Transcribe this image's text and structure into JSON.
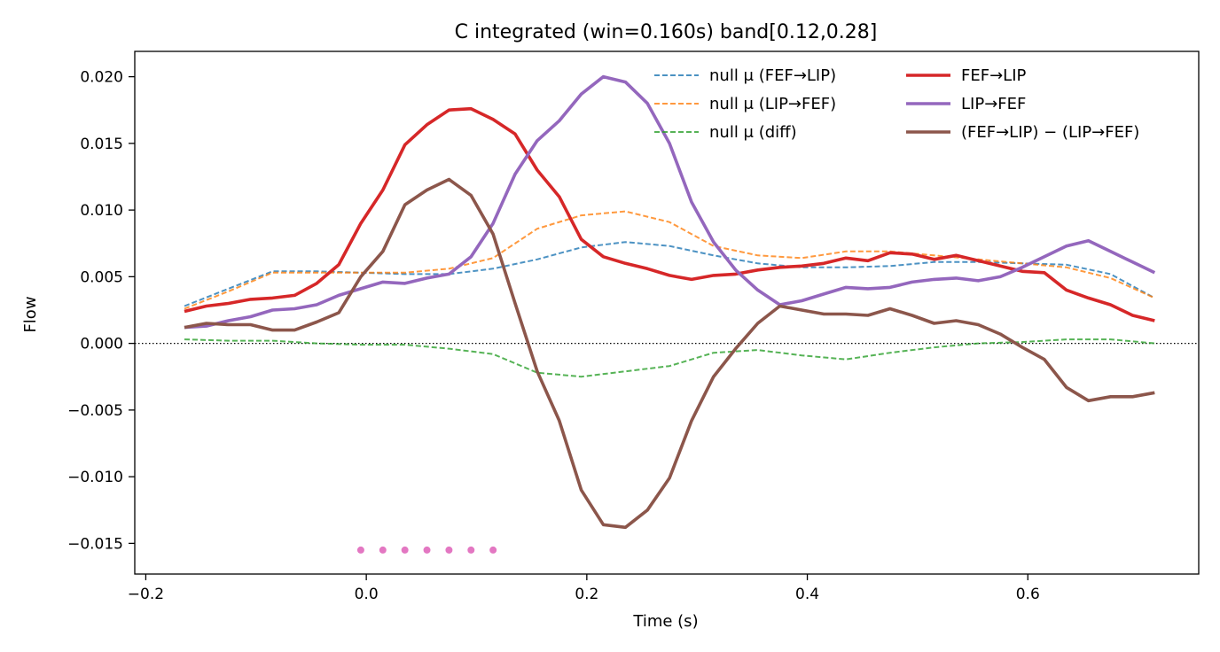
{
  "chart_data": {
    "type": "line",
    "title": "C integrated (win=0.160s)   band[0.12,0.28]",
    "xlabel": "Time (s)",
    "ylabel": "Flow",
    "xlim": [
      -0.21,
      0.755
    ],
    "ylim": [
      -0.0173,
      0.0219
    ],
    "xticks": [
      -0.2,
      0.0,
      0.2,
      0.4,
      0.6
    ],
    "xtick_labels": [
      "−0.2",
      "0.0",
      "0.2",
      "0.4",
      "0.6"
    ],
    "yticks": [
      -0.015,
      -0.01,
      -0.005,
      0.0,
      0.005,
      0.01,
      0.015,
      0.02
    ],
    "ytick_labels": [
      "−0.015",
      "−0.010",
      "−0.005",
      "0.000",
      "0.005",
      "0.010",
      "0.015",
      "0.020"
    ],
    "legend_location": "top-right",
    "grid": false,
    "zero_line": true,
    "series": [
      {
        "name": "null μ (FEF→LIP)",
        "color": "#1f77b4",
        "style": "dashed",
        "x": [
          -0.165,
          -0.125,
          -0.085,
          -0.045,
          -0.005,
          0.035,
          0.075,
          0.115,
          0.155,
          0.195,
          0.235,
          0.275,
          0.315,
          0.355,
          0.395,
          0.435,
          0.475,
          0.515,
          0.555,
          0.595,
          0.635,
          0.675,
          0.715
        ],
        "y": [
          0.0028,
          0.0041,
          0.0054,
          0.0054,
          0.0053,
          0.0052,
          0.0052,
          0.0056,
          0.0063,
          0.0072,
          0.0076,
          0.0073,
          0.0066,
          0.006,
          0.0057,
          0.0057,
          0.0058,
          0.0061,
          0.0061,
          0.006,
          0.0059,
          0.0052,
          0.0034
        ]
      },
      {
        "name": "null μ (LIP→FEF)",
        "color": "#ff7f0e",
        "style": "dashed",
        "x": [
          -0.165,
          -0.125,
          -0.085,
          -0.045,
          -0.005,
          0.035,
          0.075,
          0.115,
          0.155,
          0.195,
          0.235,
          0.275,
          0.315,
          0.355,
          0.395,
          0.435,
          0.475,
          0.515,
          0.555,
          0.595,
          0.635,
          0.675,
          0.715
        ],
        "y": [
          0.0026,
          0.0039,
          0.0053,
          0.0053,
          0.0053,
          0.0053,
          0.0056,
          0.0064,
          0.0086,
          0.0096,
          0.0099,
          0.0091,
          0.0073,
          0.0066,
          0.0064,
          0.0069,
          0.0069,
          0.0066,
          0.0063,
          0.006,
          0.0057,
          0.0049,
          0.0034
        ]
      },
      {
        "name": "null μ (diff)",
        "color": "#2ca02c",
        "style": "dashed",
        "x": [
          -0.165,
          -0.125,
          -0.085,
          -0.045,
          -0.005,
          0.035,
          0.075,
          0.115,
          0.155,
          0.195,
          0.235,
          0.275,
          0.315,
          0.355,
          0.395,
          0.435,
          0.475,
          0.515,
          0.555,
          0.595,
          0.635,
          0.675,
          0.715
        ],
        "y": [
          0.0003,
          0.0002,
          0.0002,
          0.0,
          -0.0001,
          -0.0001,
          -0.0004,
          -0.0008,
          -0.0022,
          -0.0025,
          -0.0021,
          -0.0017,
          -0.0007,
          -0.0005,
          -0.0009,
          -0.0012,
          -0.0007,
          -0.0003,
          0.0,
          0.0001,
          0.0003,
          0.0003,
          0.0
        ]
      },
      {
        "name": "FEF→LIP",
        "color": "#d62728",
        "style": "solid",
        "x": [
          -0.165,
          -0.145,
          -0.125,
          -0.105,
          -0.085,
          -0.065,
          -0.045,
          -0.025,
          -0.005,
          0.015,
          0.035,
          0.055,
          0.075,
          0.095,
          0.115,
          0.135,
          0.155,
          0.175,
          0.195,
          0.215,
          0.235,
          0.255,
          0.275,
          0.295,
          0.315,
          0.335,
          0.355,
          0.375,
          0.395,
          0.415,
          0.435,
          0.455,
          0.475,
          0.495,
          0.515,
          0.535,
          0.555,
          0.575,
          0.595,
          0.615,
          0.635,
          0.655,
          0.675,
          0.695,
          0.715
        ],
        "y": [
          0.0024,
          0.0028,
          0.003,
          0.0033,
          0.0034,
          0.0036,
          0.0045,
          0.0059,
          0.009,
          0.0115,
          0.0149,
          0.0164,
          0.0175,
          0.0176,
          0.0168,
          0.0157,
          0.013,
          0.011,
          0.0078,
          0.0065,
          0.006,
          0.0056,
          0.0051,
          0.0048,
          0.0051,
          0.0052,
          0.0055,
          0.0057,
          0.0058,
          0.006,
          0.0064,
          0.0062,
          0.0068,
          0.0067,
          0.0063,
          0.0066,
          0.0062,
          0.0058,
          0.0054,
          0.0053,
          0.004,
          0.0034,
          0.0029,
          0.0021,
          0.0017
        ]
      },
      {
        "name": "LIP→FEF",
        "color": "#9467bd",
        "style": "solid",
        "x": [
          -0.165,
          -0.145,
          -0.125,
          -0.105,
          -0.085,
          -0.065,
          -0.045,
          -0.025,
          -0.005,
          0.015,
          0.035,
          0.055,
          0.075,
          0.095,
          0.115,
          0.135,
          0.155,
          0.175,
          0.195,
          0.215,
          0.235,
          0.255,
          0.275,
          0.295,
          0.315,
          0.335,
          0.355,
          0.375,
          0.395,
          0.415,
          0.435,
          0.455,
          0.475,
          0.495,
          0.515,
          0.535,
          0.555,
          0.575,
          0.595,
          0.615,
          0.635,
          0.655,
          0.675,
          0.695,
          0.715
        ],
        "y": [
          0.0012,
          0.0013,
          0.0017,
          0.002,
          0.0025,
          0.0026,
          0.0029,
          0.0036,
          0.0041,
          0.0046,
          0.0045,
          0.0049,
          0.0052,
          0.0065,
          0.009,
          0.0127,
          0.0152,
          0.0167,
          0.0187,
          0.02,
          0.0196,
          0.018,
          0.015,
          0.0106,
          0.0076,
          0.0055,
          0.004,
          0.0029,
          0.0032,
          0.0037,
          0.0042,
          0.0041,
          0.0042,
          0.0046,
          0.0048,
          0.0049,
          0.0047,
          0.005,
          0.0057,
          0.0065,
          0.0073,
          0.0077,
          0.0069,
          0.0061,
          0.0053
        ]
      },
      {
        "name": "(FEF→LIP) − (LIP→FEF)",
        "color": "#8c564b",
        "style": "solid",
        "x": [
          -0.165,
          -0.145,
          -0.125,
          -0.105,
          -0.085,
          -0.065,
          -0.045,
          -0.025,
          -0.005,
          0.015,
          0.035,
          0.055,
          0.075,
          0.095,
          0.115,
          0.135,
          0.155,
          0.175,
          0.195,
          0.215,
          0.235,
          0.255,
          0.275,
          0.295,
          0.315,
          0.335,
          0.355,
          0.375,
          0.395,
          0.415,
          0.435,
          0.455,
          0.475,
          0.495,
          0.515,
          0.535,
          0.555,
          0.575,
          0.595,
          0.615,
          0.635,
          0.655,
          0.675,
          0.695,
          0.715
        ],
        "y": [
          0.0012,
          0.0015,
          0.0014,
          0.0014,
          0.001,
          0.001,
          0.0016,
          0.0023,
          0.005,
          0.0069,
          0.0104,
          0.0115,
          0.0123,
          0.0111,
          0.0082,
          0.003,
          -0.0021,
          -0.0058,
          -0.011,
          -0.0136,
          -0.0138,
          -0.0125,
          -0.0101,
          -0.0058,
          -0.0025,
          -0.0004,
          0.0015,
          0.0028,
          0.0025,
          0.0022,
          0.0022,
          0.0021,
          0.0026,
          0.0021,
          0.0015,
          0.0017,
          0.0014,
          0.0007,
          -0.0003,
          -0.0012,
          -0.0033,
          -0.0043,
          -0.004,
          -0.004,
          -0.0037
        ]
      }
    ],
    "markers": {
      "color": "#e377c2",
      "x": [
        -0.005,
        0.015,
        0.035,
        0.055,
        0.075,
        0.095,
        0.115
      ],
      "y": [
        -0.0155,
        -0.0155,
        -0.0155,
        -0.0155,
        -0.0155,
        -0.0155,
        -0.0155
      ]
    }
  }
}
